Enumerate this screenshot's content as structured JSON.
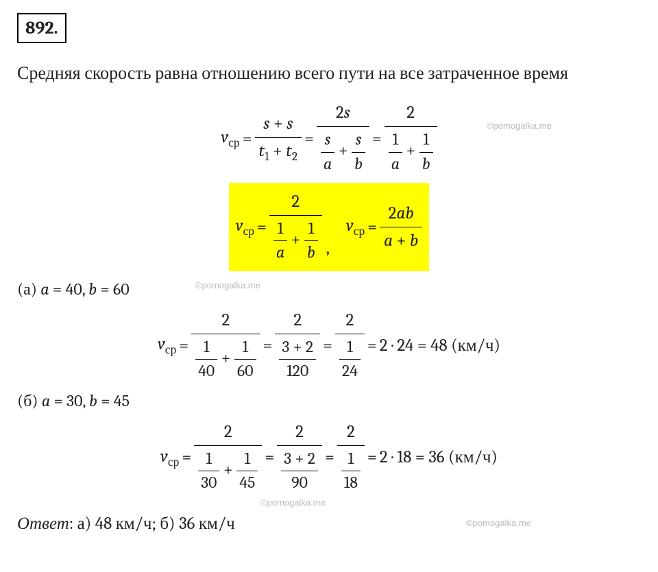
{
  "problem_number": "892.",
  "intro": "Средняя скорость равна отношению всего пути на все затраченное время",
  "watermark": "©pomogalka.me",
  "v_label": "v",
  "v_sub": "ср",
  "eq1": {
    "num1_left": "s",
    "num1_op": "+",
    "num1_right": "s",
    "den1_left": "t",
    "den1_left_sub": "1",
    "den1_op": "+",
    "den1_right": "t",
    "den1_right_sub": "2",
    "num2": "2s",
    "den2_f1_num": "s",
    "den2_f1_den": "a",
    "den2_op": "+",
    "den2_f2_num": "s",
    "den2_f2_den": "b",
    "num3": "2",
    "den3_f1_num": "1",
    "den3_f1_den": "a",
    "den3_f2_num": "1",
    "den3_f2_den": "b"
  },
  "eq2": {
    "num1": "2",
    "den1_f1_num": "1",
    "den1_f1_den": "a",
    "den1_op": "+",
    "den1_f2_num": "1",
    "den1_f2_den": "b",
    "comma": ",",
    "num2": "2ab",
    "den2": "a + b"
  },
  "part_a": {
    "label": "(а)",
    "vars": "a = 40, b = 60",
    "f1_num": "2",
    "f1_d1_num": "1",
    "f1_d1_den": "40",
    "f1_d2_num": "1",
    "f1_d2_den": "60",
    "f2_num": "2",
    "f2_d_num": "3 + 2",
    "f2_d_den": "120",
    "f3_num": "2",
    "f3_d_num": "1",
    "f3_d_den": "24",
    "result": "2 · 24 = 48 (км/ч)"
  },
  "part_b": {
    "label": "(б)",
    "vars": "a = 30, b = 45",
    "f1_num": "2",
    "f1_d1_num": "1",
    "f1_d1_den": "30",
    "f1_d2_num": "1",
    "f1_d2_den": "45",
    "f2_num": "2",
    "f2_d_num": "3 + 2",
    "f2_d_den": "90",
    "f3_num": "2",
    "f3_d_num": "1",
    "f3_d_den": "18",
    "result": "2 · 18 = 36 (км/ч)"
  },
  "answer_label": "Ответ",
  "answer_text": ": а) 48 км/ч; б) 36 км/ч",
  "ops": {
    "eq": "=",
    "plus": "+"
  }
}
